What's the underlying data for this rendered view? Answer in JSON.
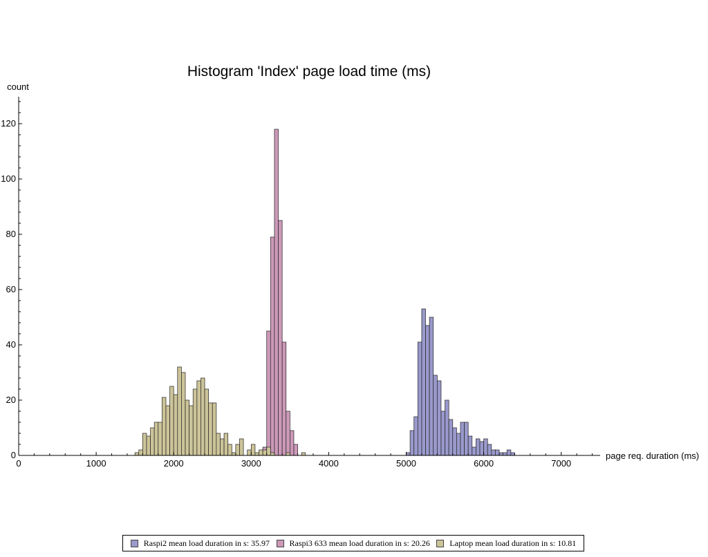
{
  "chart_data": {
    "type": "bar",
    "title": "Histogram 'Index' page load time (ms)",
    "ylabel": "count",
    "xlabel": "page req. duration (ms)",
    "xlim": [
      0,
      7500
    ],
    "ylim": [
      0,
      130
    ],
    "x_ticks": [
      0,
      1000,
      2000,
      3000,
      4000,
      5000,
      6000,
      7000
    ],
    "y_ticks": [
      20,
      40,
      60,
      80,
      100,
      120
    ],
    "bin_width": 50,
    "legend_position": "bottom",
    "series": [
      {
        "name": "Raspi2 mean load duration in s: 35.97",
        "color": "#9999cc",
        "bins": [
          [
            5000,
            1
          ],
          [
            5050,
            9
          ],
          [
            5100,
            14
          ],
          [
            5150,
            41
          ],
          [
            5200,
            53
          ],
          [
            5250,
            47
          ],
          [
            5300,
            50
          ],
          [
            5350,
            29
          ],
          [
            5400,
            27
          ],
          [
            5450,
            16
          ],
          [
            5500,
            20
          ],
          [
            5550,
            13
          ],
          [
            5600,
            10
          ],
          [
            5650,
            8
          ],
          [
            5700,
            12
          ],
          [
            5750,
            12
          ],
          [
            5800,
            7
          ],
          [
            5850,
            3
          ],
          [
            5900,
            6
          ],
          [
            5950,
            5
          ],
          [
            6000,
            6
          ],
          [
            6050,
            4
          ],
          [
            6100,
            2
          ],
          [
            6150,
            2
          ],
          [
            6200,
            1
          ],
          [
            6250,
            1
          ],
          [
            6300,
            2
          ],
          [
            6350,
            1
          ]
        ]
      },
      {
        "name": "Raspi3 633 mean load duration in s: 20.26",
        "color": "#cc99b8",
        "bins": [
          [
            3150,
            3
          ],
          [
            3200,
            45
          ],
          [
            3250,
            79
          ],
          [
            3300,
            118
          ],
          [
            3350,
            85
          ],
          [
            3400,
            41
          ],
          [
            3450,
            16
          ],
          [
            3500,
            9
          ],
          [
            3550,
            4
          ]
        ]
      },
      {
        "name": "Laptop mean load duration in s: 10.81",
        "color": "#ccc499",
        "bins": [
          [
            1500,
            1
          ],
          [
            1550,
            2
          ],
          [
            1600,
            8
          ],
          [
            1650,
            7
          ],
          [
            1700,
            10
          ],
          [
            1750,
            12
          ],
          [
            1800,
            12
          ],
          [
            1850,
            21
          ],
          [
            1900,
            18
          ],
          [
            1950,
            25
          ],
          [
            2000,
            22
          ],
          [
            2050,
            32
          ],
          [
            2100,
            30
          ],
          [
            2150,
            20
          ],
          [
            2200,
            18
          ],
          [
            2250,
            24
          ],
          [
            2300,
            27
          ],
          [
            2350,
            28
          ],
          [
            2400,
            24
          ],
          [
            2450,
            19
          ],
          [
            2500,
            19
          ],
          [
            2550,
            8
          ],
          [
            2600,
            6
          ],
          [
            2650,
            8
          ],
          [
            2700,
            4
          ],
          [
            2750,
            1
          ],
          [
            2800,
            4
          ],
          [
            2850,
            6
          ],
          [
            2950,
            2
          ],
          [
            3000,
            4
          ],
          [
            3050,
            1
          ],
          [
            3100,
            2
          ],
          [
            3150,
            2
          ],
          [
            3200,
            3
          ],
          [
            3250,
            1
          ],
          [
            3450,
            1
          ],
          [
            3650,
            1
          ]
        ]
      }
    ]
  }
}
